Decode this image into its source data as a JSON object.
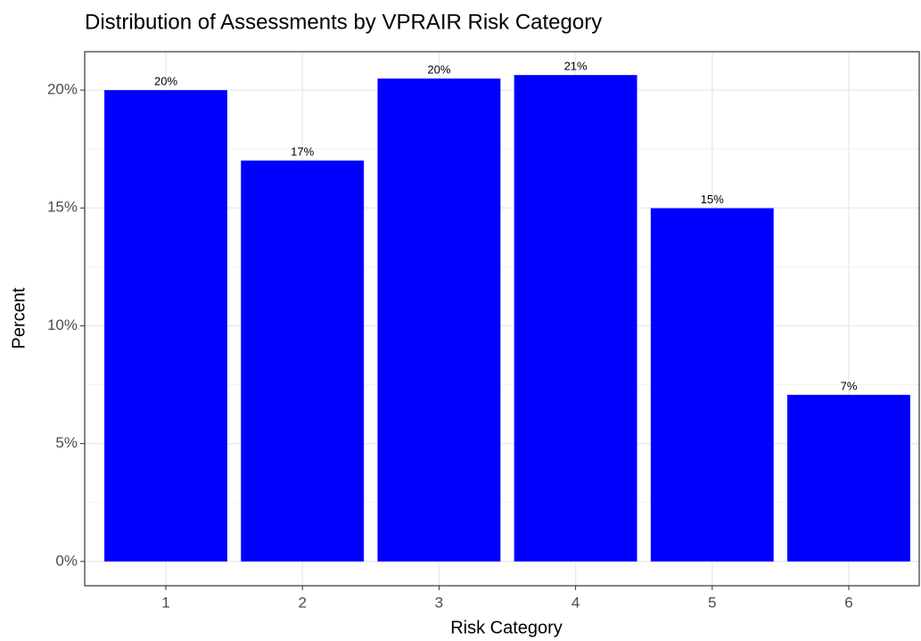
{
  "chart_data": {
    "type": "bar",
    "title": "Distribution of Assessments by VPRAIR Risk Category",
    "x_label": "Risk Category",
    "y_label": "Percent",
    "categories": [
      "1",
      "2",
      "3",
      "4",
      "5",
      "6"
    ],
    "values": [
      20.0,
      17.01,
      20.49,
      20.64,
      14.99,
      7.07
    ],
    "value_labels": [
      "20%",
      "17%",
      "20%",
      "21%",
      "15%",
      "7%"
    ],
    "color": "#0000ff",
    "ylim": [
      -1.03,
      21.63
    ],
    "yticks": [
      {
        "value": 0,
        "label": "0%"
      },
      {
        "value": 5,
        "label": "5%"
      },
      {
        "value": 10,
        "label": "10%"
      },
      {
        "value": 15,
        "label": "15%"
      },
      {
        "value": 20,
        "label": "20%"
      }
    ],
    "y_minor_gridlines": [
      2.5,
      7.5,
      12.5,
      17.5
    ],
    "grid": true
  }
}
